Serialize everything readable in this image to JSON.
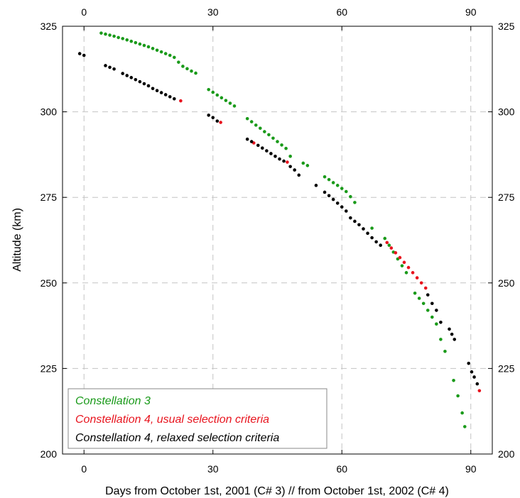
{
  "chart_data": {
    "type": "scatter",
    "title": "",
    "xlabel": "Days from October 1st, 2001 (C# 3) // from October 1st, 2002 (C# 4)",
    "ylabel": "Altitude (km)",
    "xlim": [
      -5,
      95
    ],
    "ylim": [
      200,
      325
    ],
    "xticks": [
      0,
      30,
      60,
      90
    ],
    "yticks": [
      200,
      225,
      250,
      275,
      300,
      325
    ],
    "grid": true,
    "legend_position": "bottom-left",
    "series": [
      {
        "name": "Constellation 3",
        "color": "#1a9a1a",
        "points": [
          [
            4,
            323
          ],
          [
            5,
            322.7
          ],
          [
            6,
            322.4
          ],
          [
            7,
            322.1
          ],
          [
            8,
            321.7
          ],
          [
            9,
            321.4
          ],
          [
            10,
            321.0
          ],
          [
            11,
            320.6
          ],
          [
            12,
            320.2
          ],
          [
            13,
            319.8
          ],
          [
            14,
            319.4
          ],
          [
            15,
            319.0
          ],
          [
            16,
            318.5
          ],
          [
            17,
            318.0
          ],
          [
            18,
            317.5
          ],
          [
            19,
            317.0
          ],
          [
            20,
            316.5
          ],
          [
            21,
            315.9
          ],
          [
            22,
            314.5
          ],
          [
            23,
            313.3
          ],
          [
            24,
            312.6
          ],
          [
            25,
            311.9
          ],
          [
            26,
            311.3
          ],
          [
            29,
            306.5
          ],
          [
            30,
            305.7
          ],
          [
            31,
            304.9
          ],
          [
            32,
            304.1
          ],
          [
            33,
            303.3
          ],
          [
            34,
            302.5
          ],
          [
            35,
            301.7
          ],
          [
            38,
            298.0
          ],
          [
            39,
            297.1
          ],
          [
            40,
            296.1
          ],
          [
            41,
            295.2
          ],
          [
            42,
            294.2
          ],
          [
            43,
            293.3
          ],
          [
            44,
            292.3
          ],
          [
            45,
            291.3
          ],
          [
            46,
            290.3
          ],
          [
            47,
            289.3
          ],
          [
            48,
            287.0
          ],
          [
            51,
            285.0
          ],
          [
            52,
            284.3
          ],
          [
            56,
            281.0
          ],
          [
            57,
            280.2
          ],
          [
            58,
            279.3
          ],
          [
            59,
            278.5
          ],
          [
            60,
            277.6
          ],
          [
            61,
            276.7
          ],
          [
            62,
            275.2
          ],
          [
            63,
            273.5
          ],
          [
            67,
            266.0
          ],
          [
            70,
            263.0
          ],
          [
            71,
            261.0
          ],
          [
            72,
            259.0
          ],
          [
            73,
            257.0
          ],
          [
            74,
            255.0
          ],
          [
            75,
            253.0
          ],
          [
            77,
            247.0
          ],
          [
            78,
            245.5
          ],
          [
            79,
            244.0
          ],
          [
            80,
            242.0
          ],
          [
            81,
            240.0
          ],
          [
            82,
            238.0
          ],
          [
            83,
            233.5
          ],
          [
            84,
            230.0
          ],
          [
            86,
            221.5
          ],
          [
            87,
            217.0
          ],
          [
            88,
            212.0
          ],
          [
            88.6,
            208.0
          ]
        ]
      },
      {
        "name": "Constellation 4, usual selection criteria",
        "color": "#e8141e",
        "points": [
          [
            22.5,
            303.2
          ],
          [
            31.8,
            296.9
          ],
          [
            39.5,
            290.9
          ],
          [
            47.3,
            285.3
          ],
          [
            70.5,
            261.8
          ],
          [
            71.5,
            260.2
          ],
          [
            72.5,
            258.8
          ],
          [
            73.5,
            257.4
          ],
          [
            74.5,
            256.0
          ],
          [
            75.5,
            254.5
          ],
          [
            76.5,
            253.0
          ],
          [
            77.5,
            251.5
          ],
          [
            78.5,
            250.0
          ],
          [
            79.5,
            248.5
          ],
          [
            92.0,
            218.5
          ]
        ]
      },
      {
        "name": "Constellation 4, relaxed selection criteria",
        "color": "#000000",
        "points": [
          [
            -1,
            317.0
          ],
          [
            0,
            316.5
          ],
          [
            5,
            313.5
          ],
          [
            6,
            313.0
          ],
          [
            7,
            312.5
          ],
          [
            9,
            311.2
          ],
          [
            10,
            310.6
          ],
          [
            11,
            310.0
          ],
          [
            12,
            309.4
          ],
          [
            13,
            308.8
          ],
          [
            14,
            308.2
          ],
          [
            15,
            307.6
          ],
          [
            16,
            306.8
          ],
          [
            17,
            306.2
          ],
          [
            18,
            305.6
          ],
          [
            19,
            305.0
          ],
          [
            20,
            304.4
          ],
          [
            21,
            303.8
          ],
          [
            29,
            299.0
          ],
          [
            30,
            298.3
          ],
          [
            31,
            297.3
          ],
          [
            38,
            292.0
          ],
          [
            39,
            291.3
          ],
          [
            40.5,
            290.2
          ],
          [
            41.5,
            289.4
          ],
          [
            42.5,
            288.6
          ],
          [
            43.5,
            287.8
          ],
          [
            44.5,
            287.0
          ],
          [
            45.5,
            286.2
          ],
          [
            46.5,
            285.6
          ],
          [
            48,
            284.0
          ],
          [
            49,
            283.0
          ],
          [
            50,
            281.5
          ],
          [
            54,
            278.5
          ],
          [
            56,
            276.5
          ],
          [
            57,
            275.5
          ],
          [
            58,
            274.4
          ],
          [
            59,
            273.3
          ],
          [
            60,
            272.2
          ],
          [
            61,
            271.0
          ],
          [
            62,
            269.0
          ],
          [
            63,
            268.0
          ],
          [
            64,
            267.0
          ],
          [
            65,
            265.8
          ],
          [
            66,
            264.5
          ],
          [
            67,
            263.2
          ],
          [
            68,
            262.0
          ],
          [
            69,
            261.0
          ],
          [
            80,
            246.5
          ],
          [
            81,
            244.0
          ],
          [
            82,
            242.0
          ],
          [
            83,
            238.5
          ],
          [
            85,
            236.5
          ],
          [
            85.6,
            235.0
          ],
          [
            86.2,
            233.5
          ],
          [
            89.5,
            226.5
          ],
          [
            90.2,
            224.0
          ],
          [
            90.8,
            222.5
          ],
          [
            91.5,
            220.5
          ]
        ]
      }
    ]
  }
}
